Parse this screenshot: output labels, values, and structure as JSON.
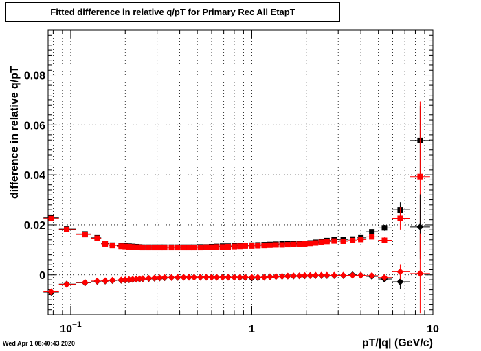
{
  "title": "Fitted difference in relative q/pT for Primary Rec All EtapT",
  "timestamp": "Wed Apr  1 08:40:43 2020",
  "chart_data": {
    "type": "scatter",
    "title": "Fitted difference in relative q/pT for Primary Rec All EtapT",
    "xlabel": "pT/|q| (GeV/c)",
    "ylabel": "difference in relative q/pT",
    "x_scale": "log",
    "xlim": [
      0.075,
      10
    ],
    "ylim": [
      -0.016,
      0.098
    ],
    "x_ticks": [
      {
        "value": 0.1,
        "label": "10",
        "sup": "−1"
      },
      {
        "value": 1,
        "label": "1"
      },
      {
        "value": 10,
        "label": "10"
      }
    ],
    "y_ticks": [
      {
        "value": 0,
        "label": "0"
      },
      {
        "value": 0.02,
        "label": "0.02"
      },
      {
        "value": 0.04,
        "label": "0.04"
      },
      {
        "value": 0.06,
        "label": "0.06"
      },
      {
        "value": 0.08,
        "label": "0.08"
      }
    ],
    "grid": true,
    "series": [
      {
        "marker": "square",
        "color": "#000000",
        "x": [
          0.078,
          0.095,
          0.12,
          0.14,
          0.155,
          0.17,
          0.19,
          0.2,
          0.21,
          0.22,
          0.23,
          0.24,
          0.25,
          0.27,
          0.29,
          0.31,
          0.33,
          0.36,
          0.39,
          0.42,
          0.45,
          0.48,
          0.52,
          0.56,
          0.6,
          0.64,
          0.69,
          0.74,
          0.8,
          0.86,
          0.92,
          1.0,
          1.08,
          1.17,
          1.26,
          1.36,
          1.47,
          1.58,
          1.7,
          1.83,
          1.96,
          2.1,
          2.25,
          2.42,
          2.6,
          2.85,
          3.2,
          3.6,
          4.0,
          4.6,
          5.4,
          6.6,
          8.5
        ],
        "y": [
          0.0228,
          0.0183,
          0.0163,
          0.0148,
          0.0125,
          0.0118,
          0.0116,
          0.0116,
          0.0114,
          0.0113,
          0.0112,
          0.0111,
          0.011,
          0.011,
          0.011,
          0.011,
          0.011,
          0.011,
          0.011,
          0.011,
          0.011,
          0.011,
          0.0111,
          0.0111,
          0.0112,
          0.0113,
          0.0114,
          0.0114,
          0.0115,
          0.0116,
          0.0117,
          0.0118,
          0.0119,
          0.012,
          0.0121,
          0.0122,
          0.0123,
          0.0124,
          0.0124,
          0.0124,
          0.0125,
          0.0127,
          0.013,
          0.0134,
          0.0137,
          0.0141,
          0.014,
          0.0143,
          0.0148,
          0.0172,
          0.0188,
          0.026,
          0.0538
        ],
        "yerr": [
          0.0005,
          0.0004,
          0.0003,
          0.0003,
          0.0003,
          0.0002,
          0.0002,
          0.0002,
          0.0002,
          0.0002,
          0.0002,
          0.0002,
          0.0002,
          0.0002,
          0.0002,
          0.0002,
          0.0002,
          0.0002,
          0.0002,
          0.0002,
          0.0002,
          0.0002,
          0.0002,
          0.0002,
          0.0002,
          0.0002,
          0.0002,
          0.0002,
          0.0002,
          0.0002,
          0.0002,
          0.0002,
          0.0002,
          0.0002,
          0.0002,
          0.0002,
          0.0003,
          0.0003,
          0.0003,
          0.0003,
          0.0003,
          0.0003,
          0.0004,
          0.0004,
          0.0004,
          0.0005,
          0.0006,
          0.0006,
          0.0007,
          0.001,
          0.0012,
          0.003,
          0.014
        ]
      },
      {
        "marker": "square",
        "color": "#ff0000",
        "x": [
          0.078,
          0.095,
          0.12,
          0.14,
          0.155,
          0.17,
          0.19,
          0.2,
          0.21,
          0.22,
          0.23,
          0.24,
          0.25,
          0.27,
          0.29,
          0.31,
          0.33,
          0.36,
          0.39,
          0.42,
          0.45,
          0.48,
          0.52,
          0.56,
          0.6,
          0.64,
          0.69,
          0.74,
          0.8,
          0.86,
          0.92,
          1.0,
          1.08,
          1.17,
          1.26,
          1.36,
          1.47,
          1.58,
          1.7,
          1.83,
          1.96,
          2.1,
          2.25,
          2.42,
          2.6,
          2.85,
          3.2,
          3.6,
          4.0,
          4.6,
          5.4,
          6.6,
          8.5
        ],
        "y": [
          0.0225,
          0.0181,
          0.0161,
          0.0146,
          0.0123,
          0.0117,
          0.0114,
          0.0113,
          0.0112,
          0.0111,
          0.011,
          0.011,
          0.0109,
          0.0109,
          0.0109,
          0.0109,
          0.0109,
          0.0109,
          0.0109,
          0.0109,
          0.0109,
          0.0109,
          0.0109,
          0.011,
          0.011,
          0.0111,
          0.0111,
          0.0112,
          0.0113,
          0.0114,
          0.0115,
          0.0115,
          0.0116,
          0.0117,
          0.0118,
          0.0119,
          0.0119,
          0.012,
          0.0121,
          0.0122,
          0.0123,
          0.0125,
          0.0127,
          0.013,
          0.0133,
          0.0135,
          0.0134,
          0.0137,
          0.0141,
          0.0152,
          0.0138,
          0.0226,
          0.0393
        ],
        "yerr": [
          0.0005,
          0.0004,
          0.0003,
          0.0003,
          0.0003,
          0.0002,
          0.0002,
          0.0002,
          0.0002,
          0.0002,
          0.0002,
          0.0002,
          0.0002,
          0.0002,
          0.0002,
          0.0002,
          0.0002,
          0.0002,
          0.0002,
          0.0002,
          0.0002,
          0.0002,
          0.0002,
          0.0002,
          0.0002,
          0.0002,
          0.0002,
          0.0002,
          0.0002,
          0.0002,
          0.0002,
          0.0002,
          0.0002,
          0.0002,
          0.0002,
          0.0002,
          0.0003,
          0.0003,
          0.0003,
          0.0003,
          0.0003,
          0.0003,
          0.0004,
          0.0004,
          0.0004,
          0.0005,
          0.0006,
          0.0006,
          0.0007,
          0.001,
          0.0012,
          0.0045,
          0.03
        ]
      },
      {
        "marker": "diamond",
        "color": "#000000",
        "x": [
          0.078,
          0.095,
          0.12,
          0.14,
          0.155,
          0.17,
          0.19,
          0.2,
          0.21,
          0.22,
          0.23,
          0.24,
          0.25,
          0.27,
          0.29,
          0.31,
          0.33,
          0.36,
          0.39,
          0.42,
          0.45,
          0.48,
          0.52,
          0.56,
          0.6,
          0.64,
          0.69,
          0.74,
          0.8,
          0.86,
          0.92,
          1.0,
          1.08,
          1.17,
          1.26,
          1.36,
          1.47,
          1.58,
          1.7,
          1.83,
          1.96,
          2.1,
          2.25,
          2.42,
          2.6,
          2.85,
          3.2,
          3.6,
          4.0,
          4.6,
          5.4,
          6.6,
          8.5
        ],
        "y": [
          -0.0072,
          -0.0037,
          -0.0032,
          -0.0026,
          -0.0025,
          -0.0023,
          -0.0022,
          -0.0021,
          -0.002,
          -0.0019,
          -0.0018,
          -0.0017,
          -0.0016,
          -0.0015,
          -0.0014,
          -0.0013,
          -0.0012,
          -0.0011,
          -0.0011,
          -0.001,
          -0.001,
          -0.001,
          -0.001,
          -0.001,
          -0.001,
          -0.001,
          -0.001,
          -0.001,
          -0.001,
          -0.0011,
          -0.0011,
          -0.0013,
          -0.0012,
          -0.001,
          -0.0008,
          -0.0007,
          -0.0006,
          -0.0005,
          -0.0005,
          -0.0004,
          -0.0004,
          -0.0003,
          -0.0003,
          -0.0003,
          -0.0003,
          -0.0003,
          -0.0003,
          0.0,
          -0.0002,
          -0.0006,
          -0.0017,
          -0.0028,
          0.0192
        ],
        "yerr": [
          0.0005,
          0.0004,
          0.0003,
          0.0003,
          0.0003,
          0.0002,
          0.0002,
          0.0002,
          0.0002,
          0.0002,
          0.0002,
          0.0002,
          0.0002,
          0.0002,
          0.0002,
          0.0002,
          0.0002,
          0.0002,
          0.0002,
          0.0002,
          0.0002,
          0.0002,
          0.0002,
          0.0002,
          0.0002,
          0.0002,
          0.0002,
          0.0002,
          0.0002,
          0.0002,
          0.0002,
          0.0002,
          0.0002,
          0.0002,
          0.0002,
          0.0002,
          0.0003,
          0.0003,
          0.0003,
          0.0003,
          0.0003,
          0.0003,
          0.0004,
          0.0004,
          0.0004,
          0.0005,
          0.0006,
          0.0006,
          0.0007,
          0.001,
          0.0012,
          0.003,
          0.013
        ]
      },
      {
        "marker": "diamond",
        "color": "#ff0000",
        "x": [
          0.078,
          0.095,
          0.12,
          0.14,
          0.155,
          0.17,
          0.19,
          0.2,
          0.21,
          0.22,
          0.23,
          0.24,
          0.25,
          0.27,
          0.29,
          0.31,
          0.33,
          0.36,
          0.39,
          0.42,
          0.45,
          0.48,
          0.52,
          0.56,
          0.6,
          0.64,
          0.69,
          0.74,
          0.8,
          0.86,
          0.92,
          1.0,
          1.08,
          1.17,
          1.26,
          1.36,
          1.47,
          1.58,
          1.7,
          1.83,
          1.96,
          2.1,
          2.25,
          2.42,
          2.6,
          2.85,
          3.2,
          3.6,
          4.0,
          4.6,
          5.4,
          6.6,
          8.5
        ],
        "y": [
          -0.0068,
          -0.0038,
          -0.0031,
          -0.0025,
          -0.0024,
          -0.0022,
          -0.0021,
          -0.002,
          -0.0019,
          -0.0018,
          -0.0017,
          -0.0016,
          -0.0015,
          -0.0014,
          -0.0013,
          -0.0012,
          -0.0011,
          -0.0011,
          -0.001,
          -0.001,
          -0.001,
          -0.001,
          -0.001,
          -0.001,
          -0.001,
          -0.001,
          -0.001,
          -0.001,
          -0.001,
          -0.001,
          -0.001,
          -0.001,
          -0.001,
          -0.001,
          -0.0008,
          -0.0007,
          -0.0006,
          -0.0005,
          -0.0004,
          -0.0004,
          -0.0003,
          -0.0003,
          -0.0002,
          -0.0002,
          -0.0002,
          -0.0002,
          -0.0002,
          -0.0002,
          -0.0002,
          -0.0003,
          -0.0011,
          0.0012,
          0.0005
        ],
        "yerr": [
          0.0005,
          0.0004,
          0.0003,
          0.0003,
          0.0003,
          0.0002,
          0.0002,
          0.0002,
          0.0002,
          0.0002,
          0.0002,
          0.0002,
          0.0002,
          0.0002,
          0.0002,
          0.0002,
          0.0002,
          0.0002,
          0.0002,
          0.0002,
          0.0002,
          0.0002,
          0.0002,
          0.0002,
          0.0002,
          0.0002,
          0.0002,
          0.0002,
          0.0002,
          0.0002,
          0.0002,
          0.0002,
          0.0002,
          0.0002,
          0.0002,
          0.0002,
          0.0003,
          0.0003,
          0.0003,
          0.0003,
          0.0003,
          0.0003,
          0.0004,
          0.0004,
          0.0004,
          0.0005,
          0.0006,
          0.0006,
          0.0007,
          0.001,
          0.0012,
          0.003,
          0.016
        ]
      }
    ]
  }
}
